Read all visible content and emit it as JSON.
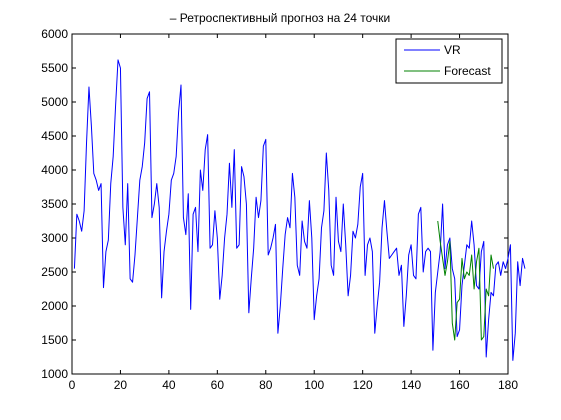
{
  "chart_data": {
    "type": "line",
    "title": "– Ретроспективный прогноз на 24 точки",
    "xlabel": "",
    "ylabel": "",
    "xlim": [
      0,
      180
    ],
    "ylim": [
      1000,
      6000
    ],
    "xticks": [
      0,
      20,
      40,
      60,
      80,
      100,
      120,
      140,
      160,
      180
    ],
    "yticks": [
      1000,
      1500,
      2000,
      2500,
      3000,
      3500,
      4000,
      4500,
      5000,
      5500,
      6000
    ],
    "grid": false,
    "legend": "top-right",
    "series": [
      {
        "name": "VR",
        "color": "#0000ff",
        "x_start": 1,
        "values": [
          2550,
          3350,
          3250,
          3100,
          3400,
          4400,
          5220,
          4650,
          3950,
          3850,
          3700,
          3800,
          2270,
          2800,
          2970,
          3800,
          4200,
          4950,
          5620,
          5500,
          3450,
          2900,
          3800,
          2400,
          2350,
          2750,
          3300,
          3850,
          4050,
          4400,
          5050,
          5150,
          3300,
          3500,
          3800,
          3450,
          2120,
          2800,
          3100,
          3350,
          3850,
          3950,
          4200,
          4850,
          5250,
          3300,
          3050,
          3650,
          1950,
          3350,
          3450,
          2800,
          4000,
          3700,
          4300,
          4520,
          2850,
          2900,
          3400,
          3000,
          2100,
          2450,
          3000,
          3350,
          4100,
          3450,
          4300,
          2850,
          2900,
          4050,
          3900,
          3500,
          1900,
          2400,
          2850,
          3600,
          3300,
          3550,
          4350,
          4450,
          2750,
          2850,
          3000,
          3200,
          1600,
          2000,
          2550,
          3050,
          3300,
          3150,
          3950,
          3600,
          2600,
          2450,
          3250,
          2950,
          2850,
          3550,
          3000,
          1800,
          2150,
          2400,
          3150,
          3400,
          4250,
          3700,
          2600,
          2450,
          3600,
          2950,
          2800,
          3500,
          2900,
          2150,
          2450,
          3100,
          3000,
          3200,
          3750,
          3950,
          2450,
          2900,
          3000,
          2800,
          1600,
          2000,
          2350,
          3150,
          3550,
          3100,
          2700,
          2750,
          2800,
          2850,
          2450,
          2600,
          1700,
          2150,
          2750,
          2900,
          2450,
          2400,
          3350,
          3450,
          2500,
          2800,
          2850,
          2800,
          1350,
          2200,
          2500,
          2800,
          3500,
          2550,
          2900,
          3000,
          2550,
          2400,
          1550,
          1650,
          2300,
          2600,
          2900,
          2850,
          3250,
          2900,
          2300,
          2250,
          2800,
          2950,
          1250,
          1800,
          2200,
          2150,
          2600,
          2650,
          2450,
          2650,
          2550,
          2700,
          2900,
          1200,
          1600,
          2650,
          2300,
          2700,
          2550
        ]
      },
      {
        "name": "Forecast",
        "color": "#008000",
        "x_start": 151,
        "values": [
          3250,
          2950,
          2700,
          2450,
          2650,
          2950,
          1750,
          1500,
          2050,
          2100,
          2700,
          2400,
          2500,
          2450,
          2750,
          2250,
          2650,
          2850,
          1500,
          1550,
          2250,
          2150,
          2750,
          2550
        ]
      }
    ]
  }
}
